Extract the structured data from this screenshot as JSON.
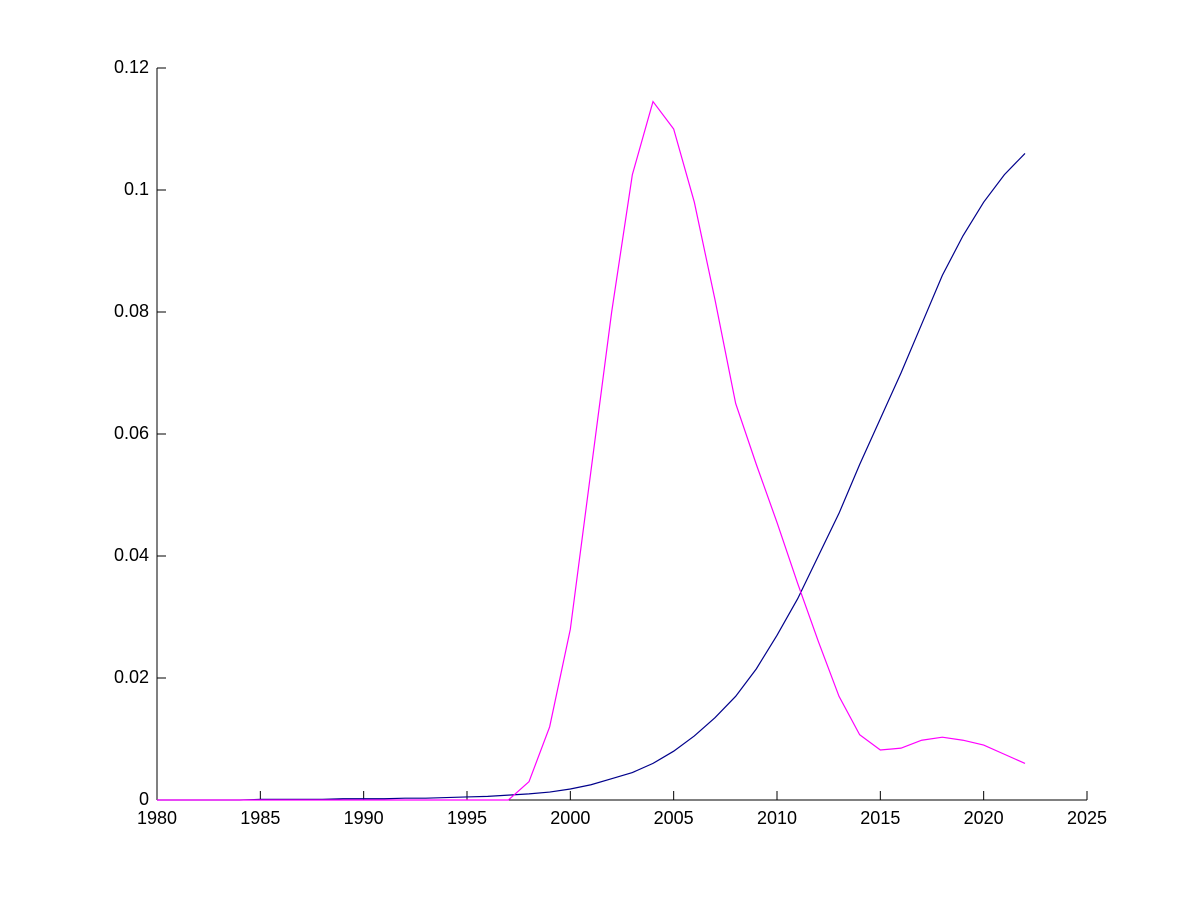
{
  "chart_data": {
    "type": "line",
    "x": [
      1980,
      1981,
      1982,
      1983,
      1984,
      1985,
      1986,
      1987,
      1988,
      1989,
      1990,
      1991,
      1992,
      1993,
      1994,
      1995,
      1996,
      1997,
      1998,
      1999,
      2000,
      2001,
      2002,
      2003,
      2004,
      2005,
      2006,
      2007,
      2008,
      2009,
      2010,
      2011,
      2012,
      2013,
      2014,
      2015,
      2016,
      2017,
      2018,
      2019,
      2020,
      2021,
      2022
    ],
    "series": [
      {
        "color": "#00008b",
        "values": [
          0,
          0,
          0,
          0,
          0,
          0.0001,
          0.0001,
          0.0001,
          0.0001,
          0.0002,
          0.0002,
          0.0002,
          0.0003,
          0.0003,
          0.0004,
          0.0005,
          0.0006,
          0.0008,
          0.001,
          0.0013,
          0.0018,
          0.0025,
          0.0035,
          0.0045,
          0.006,
          0.008,
          0.0105,
          0.0135,
          0.017,
          0.0215,
          0.027,
          0.033,
          0.04,
          0.047,
          0.055,
          0.0625,
          0.07,
          0.078,
          0.086,
          0.0925,
          0.098,
          0.1025,
          0.106
        ]
      },
      {
        "color": "#ff00ff",
        "values": [
          0,
          0,
          0,
          0,
          0,
          0,
          0,
          0,
          0,
          0,
          0,
          0,
          0,
          0,
          0,
          0,
          0,
          0,
          0.003,
          0.012,
          0.028,
          0.054,
          0.08,
          0.1025,
          0.1145,
          0.11,
          0.098,
          0.082,
          0.065,
          0.055,
          0.0455,
          0.0355,
          0.026,
          0.017,
          0.0107,
          0.0082,
          0.0085,
          0.0098,
          0.0103,
          0.0098,
          0.009,
          0.0075,
          0.006
        ]
      }
    ],
    "xlim": [
      1980,
      2025
    ],
    "xticks": [
      1980,
      1985,
      1990,
      1995,
      2000,
      2005,
      2010,
      2015,
      2020,
      2025
    ],
    "ylim": [
      0,
      0.12
    ],
    "yticks": [
      0,
      0.02,
      0.04,
      0.06,
      0.08,
      0.1,
      0.12
    ],
    "grid": false
  }
}
